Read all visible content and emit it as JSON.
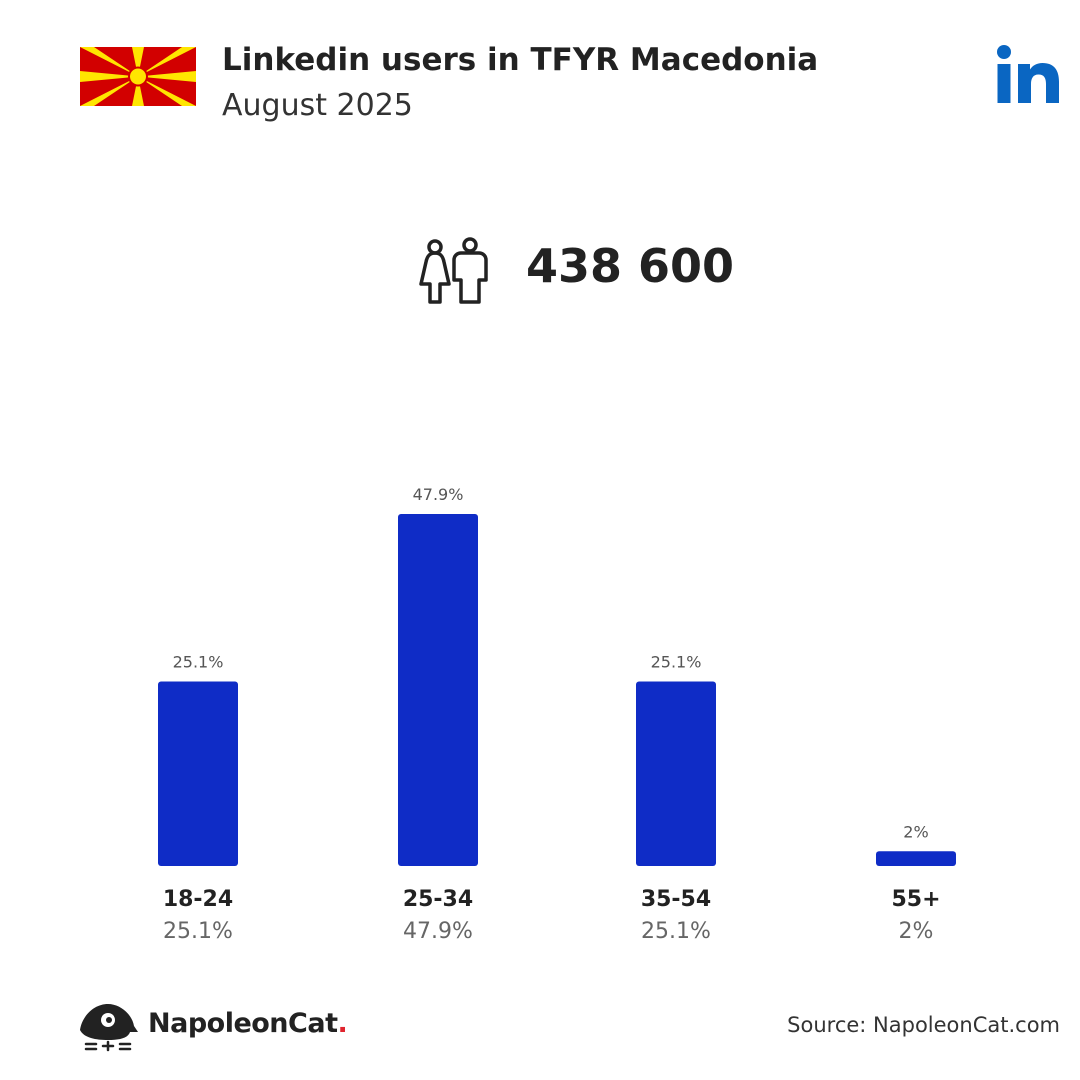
{
  "header": {
    "title": "Linkedin users in TFYR Macedonia",
    "subtitle": "August 2025",
    "flag_icon": "macedonia-flag-icon",
    "platform_icon": "linkedin-logo-icon"
  },
  "total": {
    "icon": "users-icon",
    "value": "438 600"
  },
  "colors": {
    "bar": "#0f2cc6",
    "linkedin": "#0a66c2",
    "flag_red": "#d20000",
    "flag_yellow": "#ffe600",
    "text_dark": "#222222",
    "text_light": "#555555",
    "brand_dot": "#e0242e"
  },
  "chart_data": {
    "type": "bar",
    "categories": [
      "18-24",
      "25-34",
      "35-54",
      "55+"
    ],
    "values": [
      25.1,
      47.9,
      25.1,
      2
    ],
    "labels": [
      "25.1%",
      "47.9%",
      "25.1%",
      "2%"
    ],
    "ylim": [
      0,
      47.9
    ],
    "grid": false,
    "title": "",
    "xlabel": "",
    "ylabel": ""
  },
  "footer": {
    "brand": "NapoleonCat",
    "brand_dot": ".",
    "logo_icon": "napoleoncat-logo-icon",
    "source": "Source: NapoleonCat.com"
  }
}
